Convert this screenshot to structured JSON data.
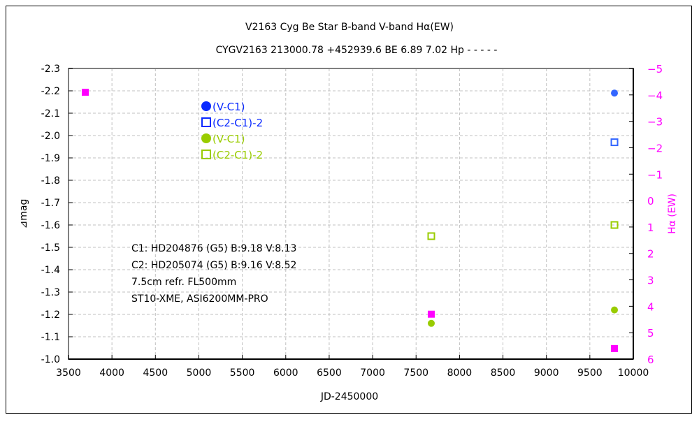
{
  "chart_data": {
    "type": "scatter",
    "title": "V2163 Cyg    Be Star    B-band  V-band  Hα(EW)",
    "subtitle": "CYGV2163 213000.78 +452939.6 BE 6.89 7.02 Hp - - - - -",
    "xlabel": "JD-2450000",
    "ylabel": "⊿mag",
    "y2label": "Hα (EW)",
    "xlim": [
      3500,
      10000
    ],
    "ylim": [
      -2.3,
      -1.0
    ],
    "y2lim": [
      -5,
      6
    ],
    "xticks": [
      3500,
      4000,
      4500,
      5000,
      5500,
      6000,
      6500,
      7000,
      7500,
      8000,
      8500,
      9000,
      9500,
      10000
    ],
    "yticks": [
      -2.3,
      -2.2,
      -2.1,
      -2.0,
      -1.9,
      -1.8,
      -1.7,
      -1.6,
      -1.5,
      -1.4,
      -1.3,
      -1.2,
      -1.1,
      -1.0
    ],
    "y2ticks": [
      -5,
      -4,
      -3,
      -2,
      -1,
      0,
      1,
      2,
      3,
      4,
      5,
      6
    ],
    "grid": true,
    "legend": [
      {
        "label": "(V-C1)",
        "color": "#0a2aff",
        "marker": "circle"
      },
      {
        "label": "(C2-C1)-2",
        "color": "#0a2aff",
        "marker": "open-square"
      },
      {
        "label": "(V-C1)",
        "color": "#99cc00",
        "marker": "circle"
      },
      {
        "label": "(C2-C1)-2",
        "color": "#99cc00",
        "marker": "open-square"
      }
    ],
    "annotations": [
      "C1: HD204876 (G5)  B:9.18  V:8.13",
      "C2: HD205074 (G5)  B:9.16  V:8.52",
      "7.5cm refr. FL500mm",
      "ST10-XME, ASI6200MM-PRO"
    ],
    "series": [
      {
        "name": "B (V-C1)",
        "color": "#3366ff",
        "marker": "circle",
        "axis": "left",
        "points": [
          [
            9783,
            -2.19
          ]
        ]
      },
      {
        "name": "B (C2-C1)-2",
        "color": "#3366ff",
        "marker": "open-square",
        "axis": "left",
        "points": [
          [
            9783,
            -1.97
          ]
        ]
      },
      {
        "name": "V (V-C1)",
        "color": "#99cc00",
        "marker": "circle",
        "axis": "left",
        "points": [
          [
            7675,
            -1.16
          ],
          [
            9783,
            -1.22
          ]
        ]
      },
      {
        "name": "V (C2-C1)-2",
        "color": "#99cc00",
        "marker": "open-square",
        "axis": "left",
        "points": [
          [
            7675,
            -1.55
          ],
          [
            9783,
            -1.6
          ]
        ]
      },
      {
        "name": "Hα EW",
        "color": "#ff00ff",
        "marker": "square",
        "axis": "right",
        "points": [
          [
            3693,
            -4.1
          ],
          [
            7675,
            4.3
          ],
          [
            9783,
            5.6
          ]
        ]
      }
    ]
  }
}
